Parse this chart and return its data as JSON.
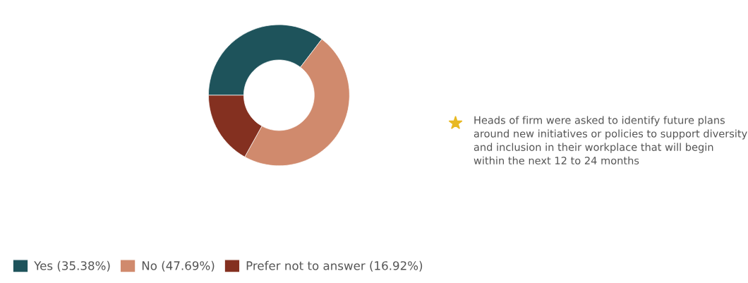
{
  "chart_data": {
    "type": "donut",
    "categories": [
      "Yes (35.38%)",
      "No (47.69%)",
      "Prefer not to answer (16.92%)"
    ],
    "values": [
      35.38,
      47.69,
      16.92
    ],
    "colors": [
      "#1e535b",
      "#d08a6d",
      "#843020"
    ],
    "legend": "bottom left",
    "annotations": [
      "Heads of firm were asked to identify future plans around new initiatives or policies to support diversity and inclusion in their workplace that will begin within the next 12 to 24 months"
    ]
  }
}
